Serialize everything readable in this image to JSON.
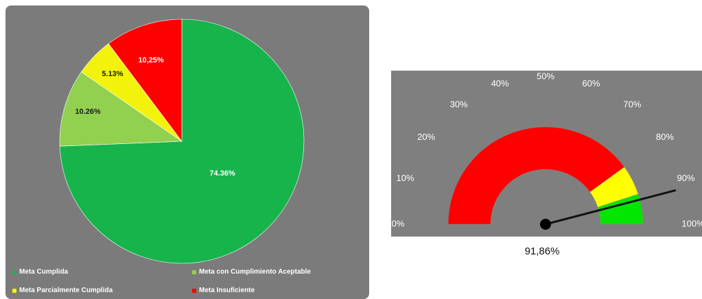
{
  "chart_data": [
    {
      "type": "pie",
      "slices": [
        {
          "label": "Meta Cumplida",
          "value": 74.36,
          "display": "74.36%",
          "color": "#16b44b",
          "label_color": "#ffffff"
        },
        {
          "label": "Meta con Cumplimiento Aceptable",
          "value": 10.26,
          "display": "10.26%",
          "color": "#92d050",
          "label_color": "#1a1a1a"
        },
        {
          "label": "Meta Parcialmente Cumplida",
          "value": 5.13,
          "display": "5.13%",
          "color": "#f2f20c",
          "label_color": "#1a1a1a"
        },
        {
          "label": "Meta Insuficiente",
          "value": 10.25,
          "display": "10,25%",
          "color": "#ff0000",
          "label_color": "#ffffff"
        }
      ],
      "start_angle_deg": 0,
      "direction": "clockwise",
      "legend_position": "bottom"
    },
    {
      "type": "gauge",
      "value": 91.86,
      "value_label": "91,86%",
      "range": [
        0,
        100
      ],
      "tick_labels": [
        "0%",
        "10%",
        "20%",
        "30%",
        "40%",
        "50%",
        "60%",
        "70%",
        "80%",
        "90%",
        "100%"
      ],
      "bands": [
        {
          "from": 0,
          "to": 80,
          "color": "#ff0000"
        },
        {
          "from": 80,
          "to": 90,
          "color": "#ffff00"
        },
        {
          "from": 90,
          "to": 100,
          "color": "#00e600"
        }
      ]
    }
  ]
}
